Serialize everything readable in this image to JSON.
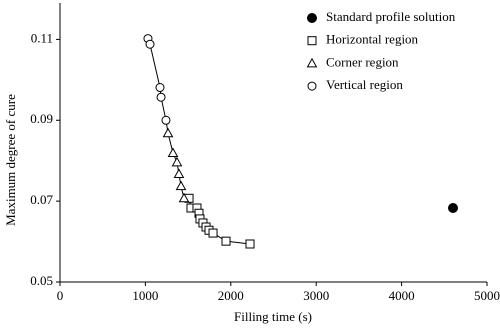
{
  "chart_data": {
    "type": "scatter",
    "x_label": "Filling time (s)",
    "y_label": "Maximum degree of cure",
    "xlim": [
      0,
      5000
    ],
    "xticks": [
      0,
      1000,
      2000,
      3000,
      4000,
      5000
    ],
    "ylim": [
      0.05,
      0.119
    ],
    "yticks": [
      0.05,
      0.07,
      0.09,
      0.11
    ],
    "grid": false,
    "legend": "upper right",
    "color": "#000000",
    "connect_regions": true,
    "series": [
      {
        "name": "Standard profile solution",
        "marker": "filled-circle",
        "x": [
          4602
        ],
        "y": [
          0.0683
        ]
      },
      {
        "name": "Horizontal region",
        "marker": "square",
        "x": [
          1511,
          1534,
          1604,
          1628,
          1639,
          1674,
          1710,
          1745,
          1792,
          1944,
          2225
        ],
        "y": [
          0.0707,
          0.0683,
          0.0683,
          0.067,
          0.0656,
          0.0646,
          0.0636,
          0.0628,
          0.0621,
          0.0601,
          0.0594
        ]
      },
      {
        "name": "Corner region",
        "marker": "triangle",
        "x": [
          1265,
          1323,
          1370,
          1393,
          1417,
          1452
        ],
        "y": [
          0.0868,
          0.0819,
          0.0796,
          0.0767,
          0.0737,
          0.0707
        ]
      },
      {
        "name": "Vertical region",
        "marker": "circle",
        "x": [
          1030,
          1054,
          1171,
          1183,
          1241
        ],
        "y": [
          0.1102,
          0.1088,
          0.0981,
          0.0957,
          0.09
        ]
      }
    ]
  }
}
